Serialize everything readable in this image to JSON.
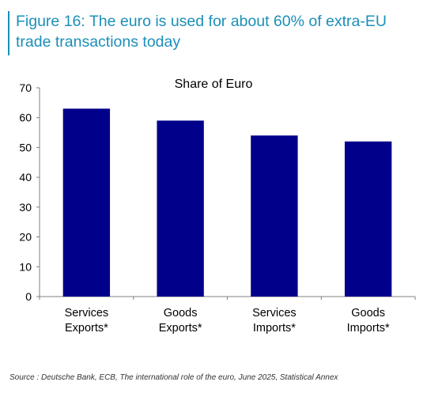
{
  "figure": {
    "title": "Figure 16: The euro is used for about 60% of extra-EU trade transactions today"
  },
  "chart_data": {
    "type": "bar",
    "title": "Share of Euro",
    "categories": [
      [
        "Services",
        "Exports*"
      ],
      [
        "Goods",
        "Exports*"
      ],
      [
        "Services",
        "Imports*"
      ],
      [
        "Goods",
        "Imports*"
      ]
    ],
    "values": [
      63,
      59,
      54,
      52
    ],
    "xlabel": "",
    "ylabel": "",
    "ylim": [
      0,
      70
    ],
    "yticks": [
      0,
      10,
      20,
      30,
      40,
      50,
      60,
      70
    ],
    "grid": false,
    "legend": "none",
    "bar_color": "#00008b"
  },
  "source": "Source : Deutsche Bank, ECB, The international role of the euro, June 2025, Statistical Annex"
}
